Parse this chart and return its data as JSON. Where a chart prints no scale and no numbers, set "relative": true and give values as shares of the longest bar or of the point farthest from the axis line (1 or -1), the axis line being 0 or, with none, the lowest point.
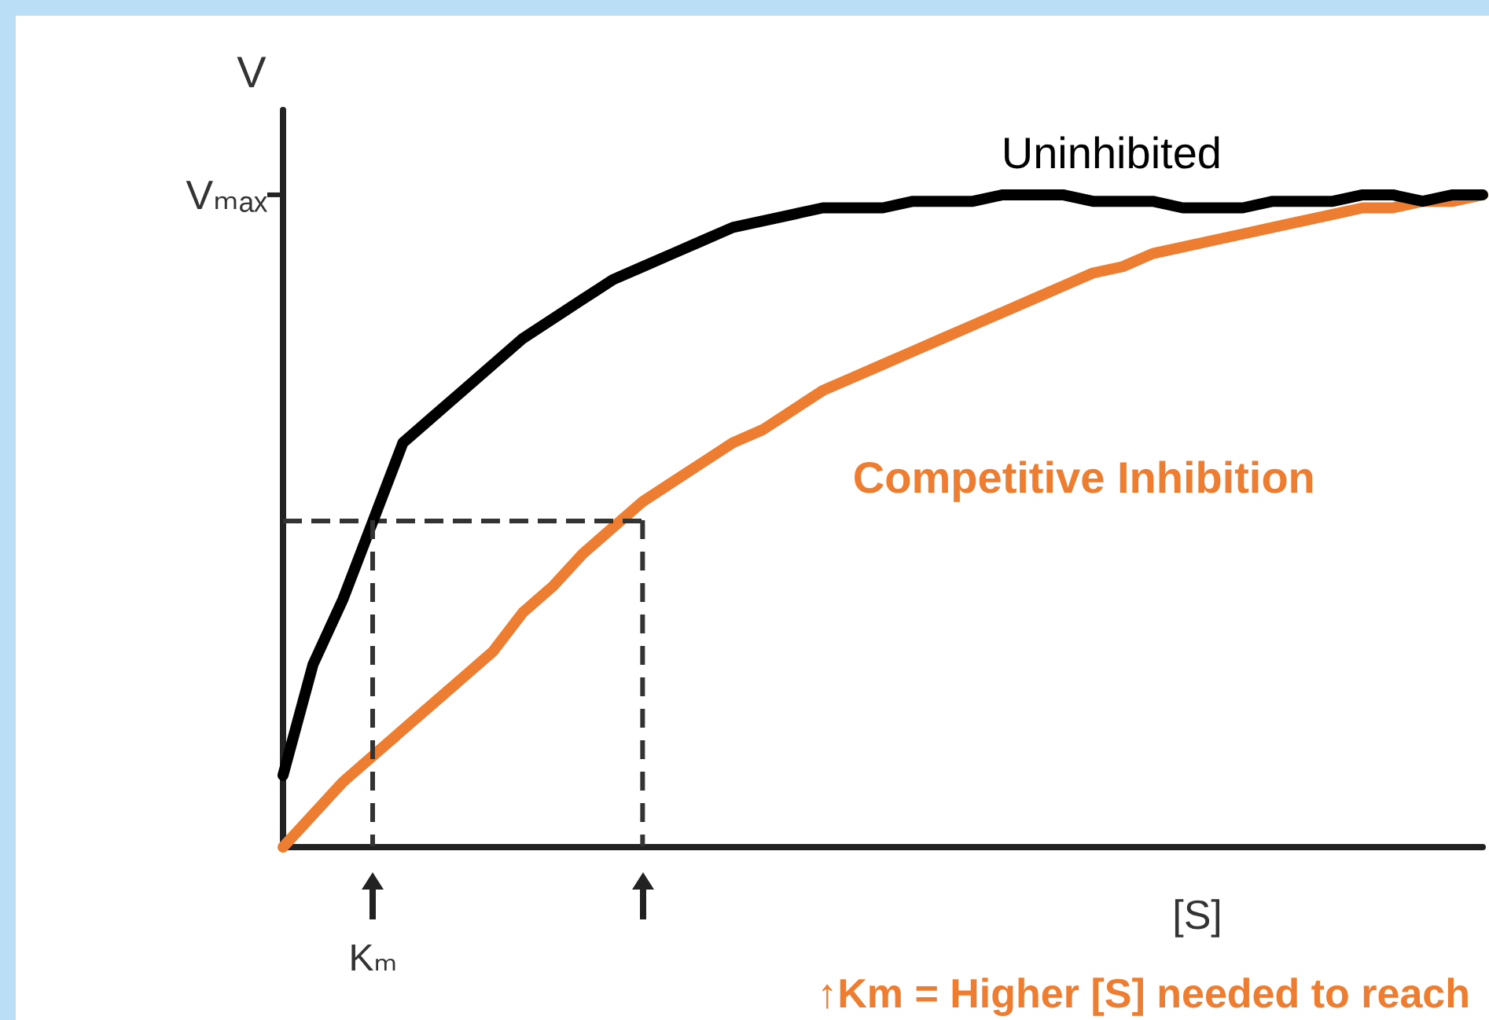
{
  "chart_data": {
    "type": "line",
    "relative": true,
    "xlabel": "[S]",
    "ylabel": "V",
    "legend": false,
    "grid": false,
    "categories": [
      null,
      null,
      null,
      null,
      null,
      null,
      null,
      null,
      null,
      null,
      null,
      null,
      null,
      null,
      null,
      null,
      null,
      null,
      null,
      null,
      null,
      null,
      null,
      null,
      null,
      null,
      null,
      null,
      null,
      null,
      null,
      null,
      null,
      null,
      null,
      null,
      null,
      null,
      null,
      null,
      null
    ],
    "series": [
      {
        "name": "Uninhibited",
        "color": "#000000",
        "values": [
          0.11,
          0.28,
          0.38,
          0.5,
          0.62,
          0.66,
          0.7,
          0.74,
          0.78,
          0.81,
          0.84,
          0.87,
          0.89,
          0.91,
          0.93,
          0.95,
          0.96,
          0.97,
          0.98,
          0.98,
          0.98,
          0.99,
          0.99,
          0.99,
          1.0,
          1.0,
          1.0,
          0.99,
          0.99,
          0.99,
          0.98,
          0.98,
          0.98,
          0.99,
          0.99,
          0.99,
          1.0,
          1.0,
          0.99,
          1.0,
          1.0
        ]
      },
      {
        "name": "Competitive Inhibition",
        "color": "#ed7d31",
        "values": [
          0.0,
          0.05,
          0.1,
          0.14,
          0.18,
          0.22,
          0.26,
          0.3,
          0.36,
          0.4,
          0.45,
          0.49,
          0.53,
          0.56,
          0.59,
          0.62,
          0.64,
          0.67,
          0.7,
          0.72,
          0.74,
          0.76,
          0.78,
          0.8,
          0.82,
          0.84,
          0.86,
          0.88,
          0.89,
          0.91,
          0.92,
          0.93,
          0.94,
          0.95,
          0.96,
          0.97,
          0.98,
          0.98,
          0.99,
          0.99,
          1.0
        ]
      }
    ],
    "ref_lines": [
      {
        "axis": "y",
        "value": 0.5,
        "line_style": "dashed",
        "color": "#333333"
      }
    ],
    "annotations": [
      "Vₘₐₓ",
      "Kₘ",
      "↑Km = Higher [S] needed to reach"
    ]
  }
}
